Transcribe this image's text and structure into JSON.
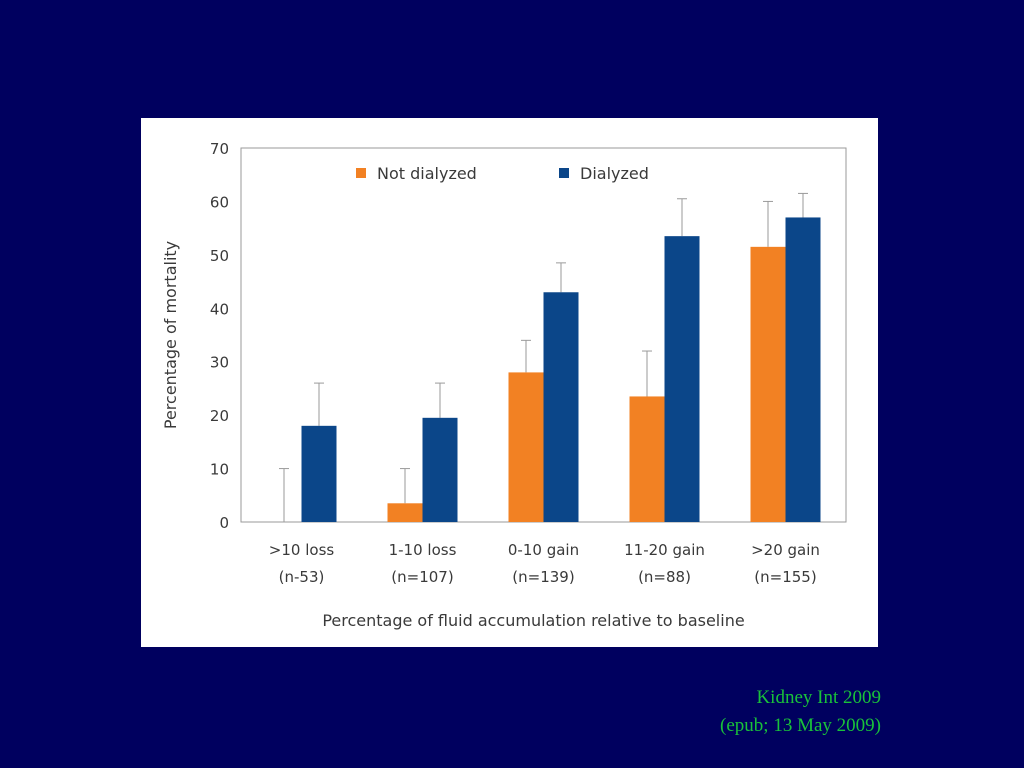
{
  "chart_data": {
    "type": "bar",
    "title": "",
    "ylabel": "Percentage of mortality",
    "xlabel": "Percentage of fluid accumulation relative to baseline",
    "ylim": [
      0,
      70
    ],
    "yticks": [
      0,
      10,
      20,
      30,
      40,
      50,
      60,
      70
    ],
    "categories": [
      [
        ">10 loss",
        "(n-53)"
      ],
      [
        "1-10 loss",
        "(n=107)"
      ],
      [
        "0-10 gain",
        "(n=139)"
      ],
      [
        "11-20 gain",
        "(n=88)"
      ],
      [
        ">20 gain",
        "(n=155)"
      ]
    ],
    "series": [
      {
        "name": "Not dialyzed",
        "color": "#f28123",
        "values": [
          0,
          3.5,
          28,
          23.5,
          51.5
        ],
        "error_upper": [
          10,
          10,
          34,
          32,
          60
        ]
      },
      {
        "name": "Dialyzed",
        "color": "#0b4689",
        "values": [
          18,
          19.5,
          43,
          53.5,
          57
        ],
        "error_upper": [
          26,
          26,
          48.5,
          60.5,
          61.5
        ]
      }
    ],
    "legend_position": "top",
    "grid": false
  },
  "citation": {
    "line1": "Kidney Int 2009",
    "line2": "(epub; 13 May 2009)"
  }
}
